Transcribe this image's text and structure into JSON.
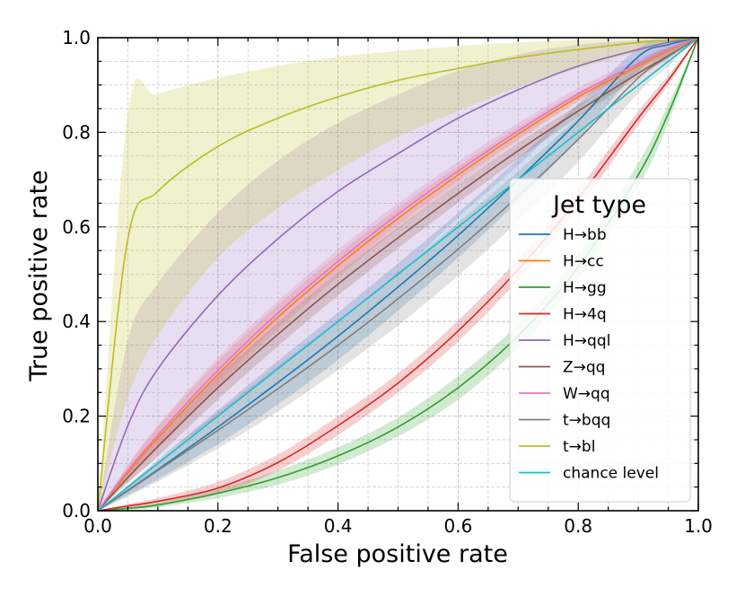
{
  "chart_data": {
    "type": "line",
    "title": "",
    "xlabel": "False positive rate",
    "ylabel": "True positive rate",
    "xlim": [
      0.0,
      1.0
    ],
    "ylim": [
      0.0,
      1.0
    ],
    "xticks": [
      "0.0",
      "0.2",
      "0.4",
      "0.6",
      "0.8",
      "1.0"
    ],
    "yticks": [
      "0.0",
      "0.2",
      "0.4",
      "0.6",
      "0.8",
      "1.0"
    ],
    "grid": true,
    "legend_title": "Jet type",
    "legend_position": "center-right",
    "x": [
      0.0,
      0.05,
      0.1,
      0.2,
      0.3,
      0.4,
      0.5,
      0.6,
      0.7,
      0.8,
      0.9,
      0.95,
      1.0
    ],
    "series": [
      {
        "name": "H→bb",
        "color": "#1f77b4",
        "values": [
          0.0,
          0.043,
          0.087,
          0.177,
          0.271,
          0.369,
          0.473,
          0.582,
          0.7,
          0.824,
          0.96,
          0.985,
          1.0
        ],
        "lower": [
          0.0,
          0.033,
          0.067,
          0.141,
          0.225,
          0.319,
          0.423,
          0.535,
          0.655,
          0.787,
          0.93,
          0.962,
          1.0
        ],
        "upper": [
          0.0,
          0.053,
          0.107,
          0.213,
          0.317,
          0.419,
          0.523,
          0.63,
          0.744,
          0.86,
          0.978,
          0.996,
          1.0
        ]
      },
      {
        "name": "H→cc",
        "color": "#ff7f0e",
        "values": [
          0.0,
          0.08,
          0.154,
          0.288,
          0.409,
          0.518,
          0.618,
          0.71,
          0.796,
          0.875,
          0.94,
          0.972,
          1.0
        ],
        "lower": [
          0.0,
          0.066,
          0.13,
          0.26,
          0.383,
          0.494,
          0.596,
          0.692,
          0.781,
          0.864,
          0.932,
          0.966,
          1.0
        ],
        "upper": [
          0.0,
          0.094,
          0.178,
          0.316,
          0.435,
          0.542,
          0.64,
          0.728,
          0.811,
          0.886,
          0.948,
          0.978,
          1.0
        ]
      },
      {
        "name": "H→gg",
        "color": "#2ca02c",
        "values": [
          0.0,
          0.005,
          0.012,
          0.037,
          0.07,
          0.116,
          0.177,
          0.26,
          0.37,
          0.515,
          0.71,
          0.84,
          1.0
        ],
        "lower": [
          0.0,
          0.002,
          0.007,
          0.027,
          0.055,
          0.098,
          0.157,
          0.235,
          0.345,
          0.49,
          0.685,
          0.82,
          1.0
        ],
        "upper": [
          0.0,
          0.008,
          0.017,
          0.047,
          0.085,
          0.134,
          0.197,
          0.285,
          0.395,
          0.54,
          0.735,
          0.86,
          1.0
        ]
      },
      {
        "name": "H→4q",
        "color": "#d62728",
        "values": [
          0.0,
          0.01,
          0.02,
          0.048,
          0.102,
          0.18,
          0.27,
          0.38,
          0.51,
          0.66,
          0.83,
          0.91,
          1.0
        ],
        "lower": [
          0.0,
          0.006,
          0.013,
          0.035,
          0.085,
          0.16,
          0.25,
          0.358,
          0.488,
          0.64,
          0.815,
          0.9,
          1.0
        ],
        "upper": [
          0.0,
          0.014,
          0.027,
          0.061,
          0.119,
          0.2,
          0.29,
          0.402,
          0.532,
          0.68,
          0.845,
          0.92,
          1.0
        ]
      },
      {
        "name": "H→qql",
        "color": "#9467bd",
        "values": [
          0.0,
          0.18,
          0.3,
          0.455,
          0.575,
          0.675,
          0.755,
          0.83,
          0.89,
          0.94,
          0.975,
          0.99,
          1.0
        ],
        "lower": [
          0.0,
          0.06,
          0.11,
          0.2,
          0.3,
          0.4,
          0.5,
          0.62,
          0.73,
          0.85,
          0.94,
          0.975,
          1.0
        ],
        "upper": [
          0.0,
          0.36,
          0.48,
          0.63,
          0.74,
          0.82,
          0.88,
          0.93,
          0.965,
          0.985,
          0.995,
          1.0,
          1.0
        ]
      },
      {
        "name": "Z→qq",
        "color": "#8c564b",
        "values": [
          0.0,
          0.07,
          0.136,
          0.26,
          0.373,
          0.479,
          0.577,
          0.671,
          0.761,
          0.845,
          0.925,
          0.962,
          1.0
        ],
        "lower": [
          0.0,
          0.058,
          0.115,
          0.235,
          0.348,
          0.455,
          0.555,
          0.651,
          0.744,
          0.832,
          0.916,
          0.956,
          1.0
        ],
        "upper": [
          0.0,
          0.082,
          0.157,
          0.285,
          0.398,
          0.503,
          0.599,
          0.691,
          0.778,
          0.858,
          0.934,
          0.968,
          1.0
        ]
      },
      {
        "name": "W→qq",
        "color": "#e377c2",
        "values": [
          0.0,
          0.085,
          0.16,
          0.297,
          0.418,
          0.527,
          0.627,
          0.718,
          0.803,
          0.881,
          0.945,
          0.975,
          1.0
        ],
        "lower": [
          0.0,
          0.073,
          0.14,
          0.27,
          0.392,
          0.502,
          0.604,
          0.698,
          0.786,
          0.868,
          0.935,
          0.968,
          1.0
        ],
        "upper": [
          0.0,
          0.097,
          0.18,
          0.324,
          0.444,
          0.552,
          0.65,
          0.738,
          0.82,
          0.894,
          0.955,
          0.982,
          1.0
        ]
      },
      {
        "name": "t→bqq",
        "color": "#7f7f7f",
        "values": [
          0.0,
          0.042,
          0.085,
          0.17,
          0.258,
          0.35,
          0.448,
          0.553,
          0.665,
          0.785,
          0.915,
          0.96,
          1.0
        ],
        "lower": [
          0.0,
          0.03,
          0.062,
          0.132,
          0.21,
          0.297,
          0.392,
          0.497,
          0.612,
          0.738,
          0.883,
          0.94,
          1.0
        ],
        "upper": [
          0.0,
          0.054,
          0.108,
          0.208,
          0.306,
          0.403,
          0.504,
          0.609,
          0.718,
          0.832,
          0.947,
          0.98,
          1.0
        ]
      },
      {
        "name": "t→bl",
        "color": "#bcbd22",
        "values": [
          0.0,
          0.575,
          0.675,
          0.77,
          0.83,
          0.875,
          0.91,
          0.935,
          0.958,
          0.975,
          0.99,
          0.995,
          1.0
        ],
        "lower": [
          0.0,
          0.24,
          0.37,
          0.535,
          0.64,
          0.72,
          0.79,
          0.845,
          0.895,
          0.935,
          0.97,
          0.985,
          1.0
        ],
        "upper": [
          0.0,
          0.84,
          0.88,
          0.915,
          0.94,
          0.96,
          0.972,
          0.982,
          0.99,
          0.995,
          0.998,
          1.0,
          1.0
        ]
      },
      {
        "name": "chance level",
        "color": "#17becf",
        "values": [
          0.0,
          0.05,
          0.1,
          0.2,
          0.3,
          0.4,
          0.5,
          0.6,
          0.7,
          0.8,
          0.9,
          0.95,
          1.0
        ]
      }
    ]
  }
}
